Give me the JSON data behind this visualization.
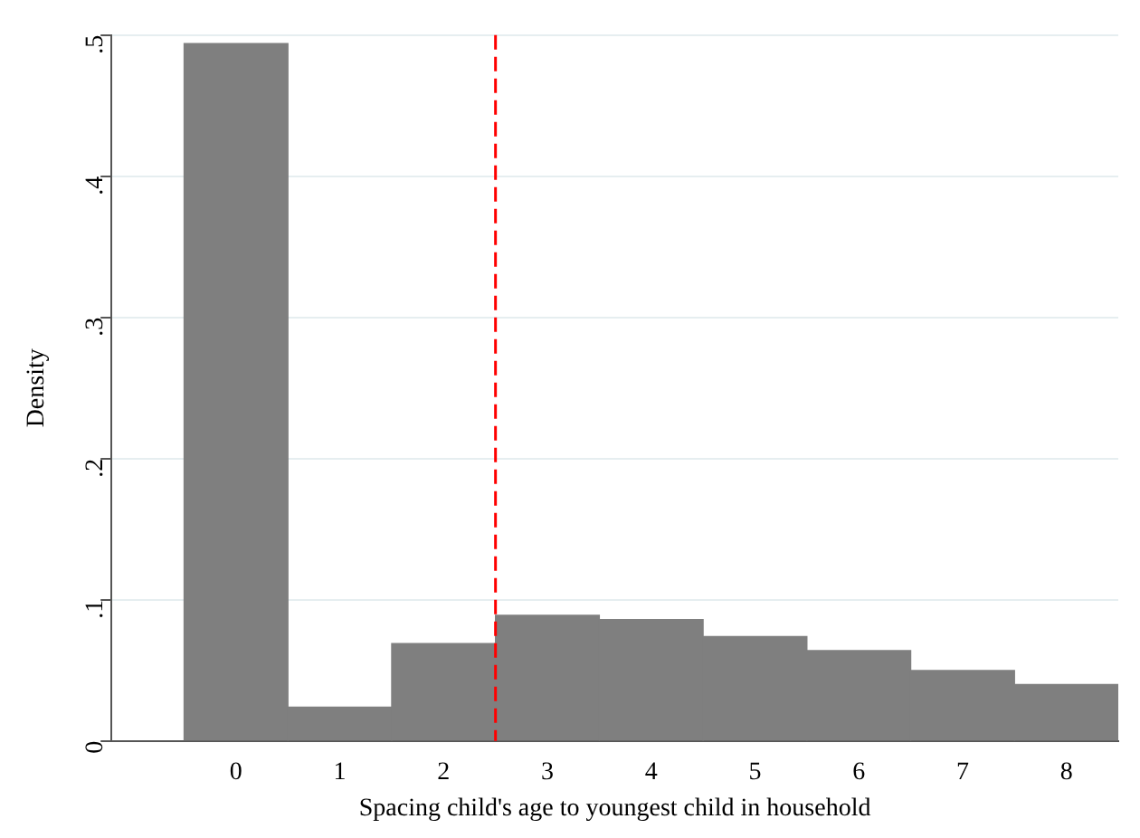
{
  "chart_data": {
    "type": "histogram",
    "xlabel": "Spacing child's age to youngest child in household",
    "ylabel": "Density",
    "bins": [
      -0.5,
      0.5,
      1.5,
      2.5,
      3.5,
      4.5,
      5.5,
      6.5,
      7.5,
      8.5
    ],
    "values": [
      0.494,
      0.024,
      0.069,
      0.089,
      0.086,
      0.074,
      0.064,
      0.05,
      0.04
    ],
    "color": "#7f7f7f",
    "xlim": [
      -1.2,
      8.5
    ],
    "xticks": [
      0,
      1,
      2,
      3,
      4,
      5,
      6,
      7,
      8
    ],
    "ylim": [
      0,
      0.5
    ],
    "yticks": [
      {
        "value": 0,
        "label": "0"
      },
      {
        "value": 0.1,
        "label": ".1"
      },
      {
        "value": 0.2,
        "label": ".2"
      },
      {
        "value": 0.3,
        "label": ".3"
      },
      {
        "value": 0.4,
        "label": ".4"
      },
      {
        "value": 0.5,
        "label": ".5"
      }
    ],
    "ref_lines": [
      {
        "axis": "x",
        "value": 2.5,
        "color": "#ff0000",
        "line_style": "dashed"
      }
    ],
    "grid": "y",
    "legend": false
  }
}
